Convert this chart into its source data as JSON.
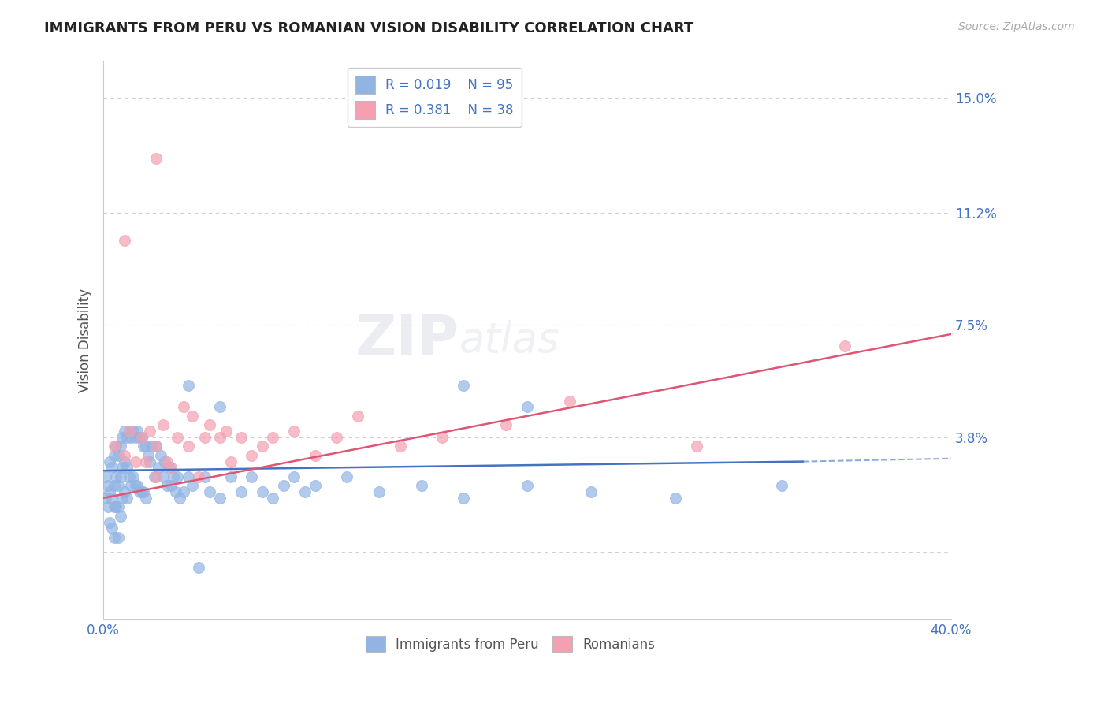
{
  "title": "IMMIGRANTS FROM PERU VS ROMANIAN VISION DISABILITY CORRELATION CHART",
  "source_text": "Source: ZipAtlas.com",
  "ylabel": "Vision Disability",
  "xlim": [
    0.0,
    0.4
  ],
  "ylim": [
    -0.022,
    0.162
  ],
  "yticks": [
    0.0,
    0.038,
    0.075,
    0.112,
    0.15
  ],
  "ytick_labels": [
    "",
    "3.8%",
    "7.5%",
    "11.2%",
    "15.0%"
  ],
  "color_peru": "#92b4e3",
  "color_romania": "#f4a0b0",
  "color_line_peru": "#4472c4",
  "color_line_romania": "#e05575",
  "color_text_blue": "#4472c4",
  "color_grid": "#c8d0dc",
  "legend_r1": "R = 0.019",
  "legend_n1": "N = 95",
  "legend_r2": "R = 0.381",
  "legend_n2": "N = 38",
  "peru_points_x": [
    0.001,
    0.001,
    0.002,
    0.002,
    0.003,
    0.003,
    0.003,
    0.004,
    0.004,
    0.004,
    0.005,
    0.005,
    0.005,
    0.005,
    0.006,
    0.006,
    0.006,
    0.007,
    0.007,
    0.007,
    0.007,
    0.008,
    0.008,
    0.008,
    0.009,
    0.009,
    0.009,
    0.01,
    0.01,
    0.01,
    0.011,
    0.011,
    0.011,
    0.012,
    0.012,
    0.013,
    0.013,
    0.014,
    0.014,
    0.015,
    0.015,
    0.016,
    0.016,
    0.017,
    0.017,
    0.018,
    0.018,
    0.019,
    0.019,
    0.02,
    0.02,
    0.021,
    0.022,
    0.023,
    0.024,
    0.025,
    0.026,
    0.027,
    0.028,
    0.029,
    0.03,
    0.031,
    0.032,
    0.033,
    0.034,
    0.035,
    0.036,
    0.038,
    0.04,
    0.042,
    0.045,
    0.048,
    0.05,
    0.055,
    0.06,
    0.065,
    0.07,
    0.075,
    0.08,
    0.085,
    0.09,
    0.095,
    0.1,
    0.115,
    0.13,
    0.15,
    0.17,
    0.2,
    0.23,
    0.27,
    0.32,
    0.17,
    0.2,
    0.04,
    0.055
  ],
  "peru_points_y": [
    0.025,
    0.018,
    0.022,
    0.015,
    0.03,
    0.02,
    0.01,
    0.028,
    0.018,
    0.008,
    0.032,
    0.022,
    0.015,
    0.005,
    0.035,
    0.025,
    0.015,
    0.032,
    0.022,
    0.015,
    0.005,
    0.035,
    0.025,
    0.012,
    0.038,
    0.028,
    0.018,
    0.04,
    0.03,
    0.02,
    0.038,
    0.028,
    0.018,
    0.04,
    0.025,
    0.038,
    0.022,
    0.04,
    0.025,
    0.038,
    0.022,
    0.04,
    0.022,
    0.038,
    0.02,
    0.038,
    0.02,
    0.035,
    0.02,
    0.035,
    0.018,
    0.032,
    0.03,
    0.035,
    0.025,
    0.035,
    0.028,
    0.032,
    0.025,
    0.03,
    0.022,
    0.028,
    0.022,
    0.025,
    0.02,
    0.025,
    0.018,
    0.02,
    0.025,
    0.022,
    -0.005,
    0.025,
    0.02,
    0.018,
    0.025,
    0.02,
    0.025,
    0.02,
    0.018,
    0.022,
    0.025,
    0.02,
    0.022,
    0.025,
    0.02,
    0.022,
    0.018,
    0.022,
    0.02,
    0.018,
    0.022,
    0.055,
    0.048,
    0.055,
    0.048
  ],
  "romania_points_x": [
    0.005,
    0.01,
    0.012,
    0.015,
    0.018,
    0.02,
    0.022,
    0.025,
    0.025,
    0.028,
    0.03,
    0.032,
    0.035,
    0.038,
    0.04,
    0.042,
    0.045,
    0.048,
    0.05,
    0.055,
    0.058,
    0.06,
    0.065,
    0.07,
    0.075,
    0.08,
    0.09,
    0.1,
    0.11,
    0.12,
    0.14,
    0.16,
    0.19,
    0.22,
    0.28,
    0.35,
    0.01,
    0.025
  ],
  "romania_points_y": [
    0.035,
    0.032,
    0.04,
    0.03,
    0.038,
    0.03,
    0.04,
    0.035,
    0.025,
    0.042,
    0.03,
    0.028,
    0.038,
    0.048,
    0.035,
    0.045,
    0.025,
    0.038,
    0.042,
    0.038,
    0.04,
    0.03,
    0.038,
    0.032,
    0.035,
    0.038,
    0.04,
    0.032,
    0.038,
    0.045,
    0.035,
    0.038,
    0.042,
    0.05,
    0.035,
    0.068,
    0.103,
    0.13
  ]
}
